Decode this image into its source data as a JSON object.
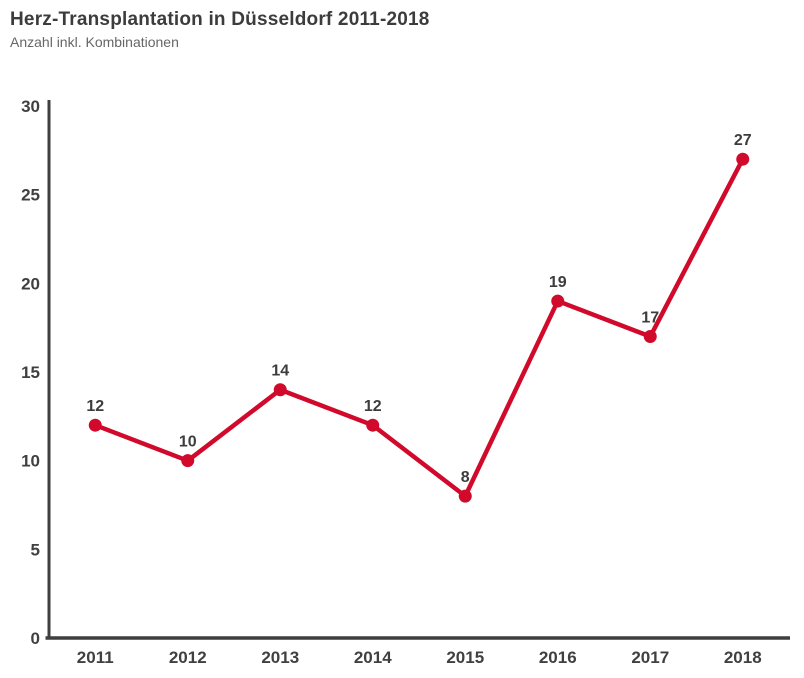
{
  "header": {
    "title": "Herz-Transplantation in Düsseldorf 2011-2018",
    "subtitle": "Anzahl inkl. Kombinationen"
  },
  "colors": {
    "series_red": "#d10a2c",
    "axis_gray": "#3f3f3f",
    "title_text": "#3c3c3c",
    "subtitle_text": "#666666",
    "tick_text": "#404040",
    "data_label_text": "#3c3c3c",
    "background": "#ffffff"
  },
  "chart_data": {
    "type": "line",
    "title": "Herz-Transplantation in Düsseldorf 2011-2018",
    "subtitle": "Anzahl inkl. Kombinationen",
    "categories": [
      "2011",
      "2012",
      "2013",
      "2014",
      "2015",
      "2016",
      "2017",
      "2018"
    ],
    "values": [
      12,
      10,
      14,
      12,
      8,
      19,
      17,
      27
    ],
    "xlabel": "",
    "ylabel": "",
    "ylim": [
      0,
      30
    ],
    "yticks": [
      0,
      5,
      10,
      15,
      20,
      25,
      30
    ],
    "grid": false,
    "legend": false,
    "marker": "circle",
    "show_data_labels": true
  }
}
